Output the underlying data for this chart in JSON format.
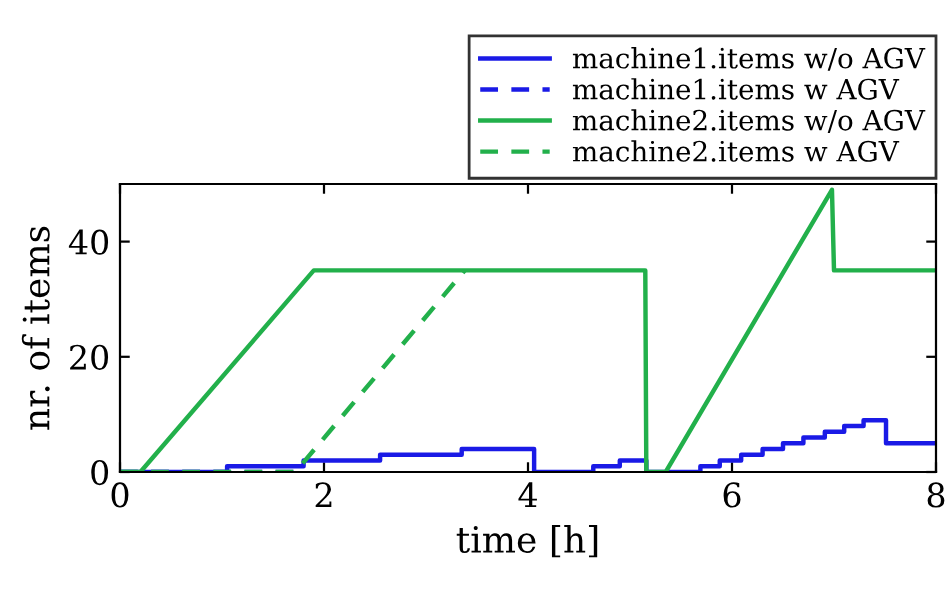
{
  "chart_data": {
    "type": "line",
    "xlabel": "time [h]",
    "ylabel": "nr. of items",
    "xlim": [
      0,
      8
    ],
    "ylim": [
      0,
      50
    ],
    "xticks": [
      0,
      2,
      4,
      6,
      8
    ],
    "yticks": [
      0,
      20,
      40
    ],
    "grid": false,
    "legend": "top right",
    "series": [
      {
        "name": "machine1.items w/o AGV",
        "type": "step",
        "color": "#1a1ae6",
        "line_style": "solid",
        "x": [
          0,
          1.05,
          1.8,
          2.55,
          3.35,
          4.06,
          4.64,
          4.9,
          5.16,
          5.69,
          5.88,
          6.09,
          6.3,
          6.5,
          6.7,
          6.91,
          7.1,
          7.29,
          7.51,
          8
        ],
        "values": [
          0,
          1,
          2,
          3,
          4,
          0,
          1,
          2,
          0,
          1,
          2,
          3,
          4,
          5,
          6,
          7,
          8,
          9,
          5,
          5
        ]
      },
      {
        "name": "machine1.items w AGV",
        "type": "step",
        "color": "#1a1ae6",
        "line_style": "dashed",
        "x": [
          0,
          1.7
        ],
        "values": [
          0,
          0
        ]
      },
      {
        "name": "machine2.items w/o AGV",
        "color": "#22b04b",
        "line_style": "solid",
        "x": [
          0,
          0.2,
          1.9,
          5.15,
          5.16,
          5.35,
          6.98,
          7.0,
          8
        ],
        "values": [
          0,
          0,
          35,
          35,
          0,
          0,
          49,
          35,
          35
        ]
      },
      {
        "name": "machine2.items w AGV",
        "color": "#22b04b",
        "line_style": "dashed",
        "x": [
          0,
          1.72,
          3.38
        ],
        "values": [
          0,
          0,
          35
        ]
      }
    ]
  }
}
